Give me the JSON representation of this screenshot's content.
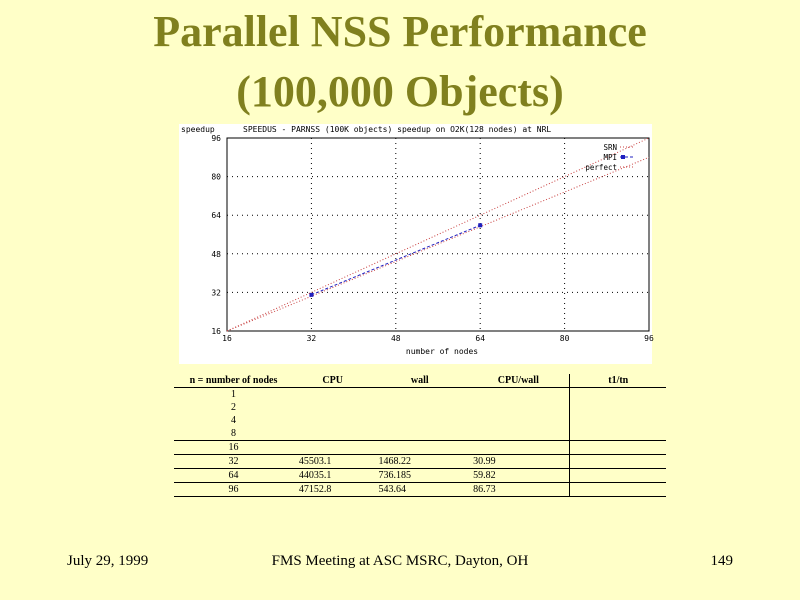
{
  "slide": {
    "title_line1": "Parallel NSS Performance",
    "title_line2": "(100,000 Objects)"
  },
  "chart_data": {
    "type": "line",
    "title": "SPEEDUS - PARNSS (100K objects) speedup on O2K(128 nodes) at NRL",
    "ylabel": "speedup",
    "xlabel": "number of nodes",
    "xlim": [
      16,
      96
    ],
    "ylim": [
      16,
      96
    ],
    "x_ticks": [
      16,
      32,
      48,
      64,
      80,
      96
    ],
    "y_ticks": [
      16,
      32,
      48,
      64,
      80,
      96
    ],
    "grid": true,
    "legend_position": "top-right",
    "series": [
      {
        "name": "SRN",
        "x": [
          16,
          96
        ],
        "y": [
          16,
          88
        ],
        "color": "#c84040",
        "style": "dotted"
      },
      {
        "name": "MPI",
        "x": [
          32,
          64
        ],
        "y": [
          30.99,
          59.82
        ],
        "color": "#2020c0",
        "style": "dashed-markers"
      },
      {
        "name": "perfect",
        "x": [
          16,
          96
        ],
        "y": [
          16,
          96
        ],
        "color": "#c84040",
        "style": "dotted"
      }
    ]
  },
  "table": {
    "headers": [
      "n = number of nodes",
      "CPU",
      "wall",
      "CPU/wall",
      "t1/tn"
    ],
    "rows": [
      [
        "1",
        "",
        "",
        "",
        ""
      ],
      [
        "2",
        "",
        "",
        "",
        ""
      ],
      [
        "4",
        "",
        "",
        "",
        ""
      ],
      [
        "8",
        "",
        "",
        "",
        ""
      ],
      [
        "16",
        "",
        "",
        "",
        ""
      ],
      [
        "32",
        "45503.1",
        "1468.22",
        "30.99",
        ""
      ],
      [
        "64",
        "44035.1",
        "736.185",
        "59.82",
        ""
      ],
      [
        "96",
        "47152.8",
        "543.64",
        "86.73",
        ""
      ]
    ]
  },
  "footer": {
    "date": "July 29,  1999",
    "venue": "FMS Meeting at ASC MSRC, Dayton, OH",
    "page": "149"
  }
}
